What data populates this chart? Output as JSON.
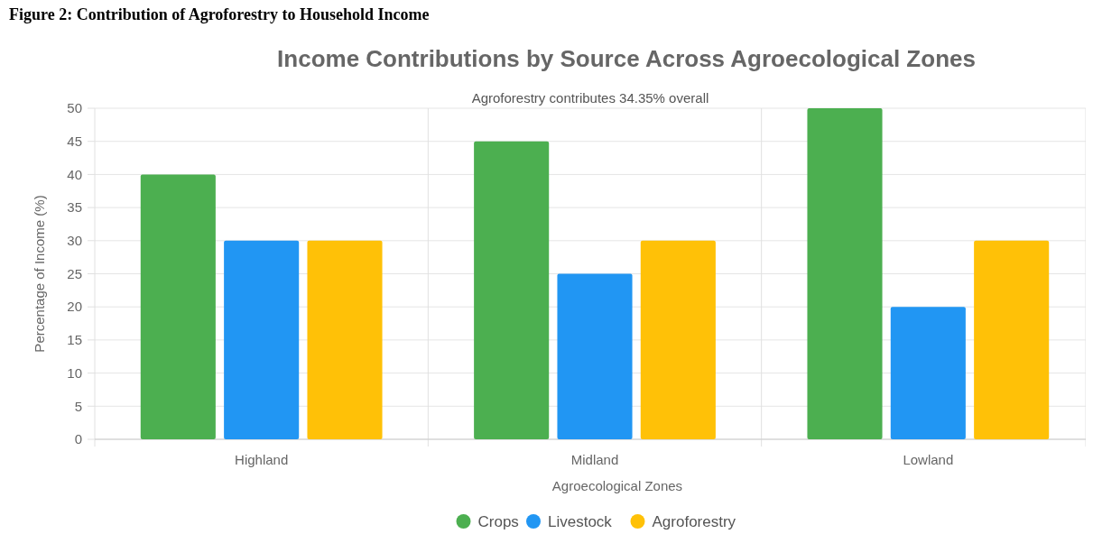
{
  "chart_data": {
    "type": "bar",
    "title": "Income Contributions by Source Across Agroecological Zones",
    "subtitle": "Agroforestry contributes 34.35% overall",
    "xlabel": "Agroecological Zones",
    "ylabel": "Percentage of Income (%)",
    "annotations": [
      "Figure 2: Contribution of Agroforestry to Household Income"
    ],
    "categories": [
      "Highland",
      "Midland",
      "Lowland"
    ],
    "series": [
      {
        "name": "Crops",
        "color": "#4caf50",
        "values": [
          40,
          45,
          50
        ]
      },
      {
        "name": "Livestock",
        "color": "#2196f3",
        "values": [
          30,
          25,
          20
        ]
      },
      {
        "name": "Agroforestry",
        "color": "#ffc107",
        "values": [
          30,
          30,
          30
        ]
      }
    ],
    "ylim": [
      0,
      50
    ],
    "yticks": [
      0,
      5,
      10,
      15,
      20,
      25,
      30,
      35,
      40,
      45,
      50
    ],
    "grid": true,
    "legend": "bottom"
  }
}
